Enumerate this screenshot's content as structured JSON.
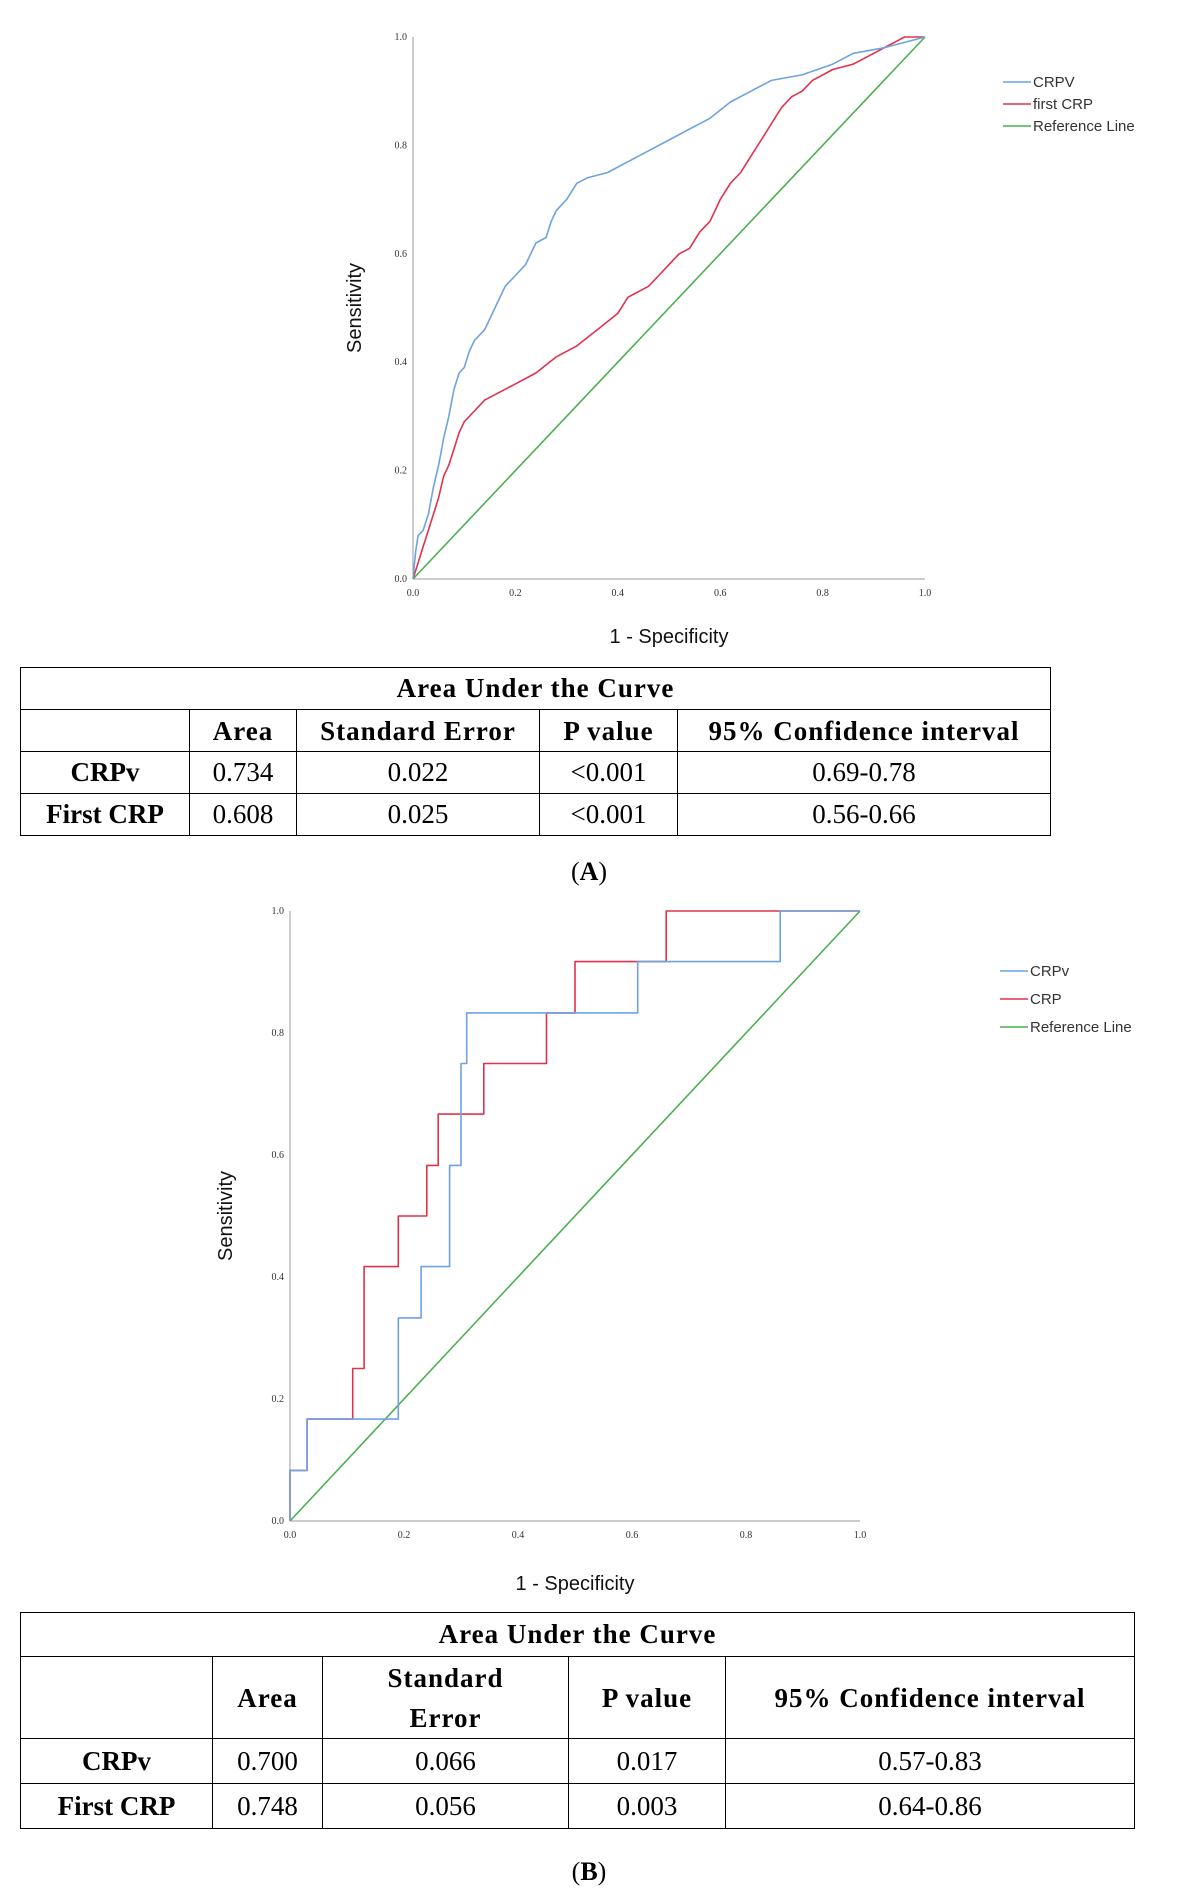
{
  "panels": [
    {
      "label_open": "(",
      "label_letter": "A",
      "label_close": ")",
      "legend": [
        {
          "name": "CRPV",
          "color": "#6ea3e0"
        },
        {
          "name": "first CRP",
          "color": "#e0324e"
        },
        {
          "name": "Reference Line",
          "color": "#4caf50"
        }
      ],
      "table": {
        "title": "Area Under the Curve",
        "headers": [
          "",
          "Area",
          "Standard Error",
          "P value",
          "95% Confidence interval"
        ],
        "rows": [
          [
            "CRPv",
            "0.734",
            "0.022",
            "<0.001",
            "0.69-0.78"
          ],
          [
            "First CRP",
            "0.608",
            "0.025",
            "<0.001",
            "0.56-0.66"
          ]
        ]
      }
    },
    {
      "label_open": "(",
      "label_letter": "B",
      "label_close": ")",
      "legend": [
        {
          "name": "CRPv",
          "color": "#6ea3e0"
        },
        {
          "name": "CRP",
          "color": "#e0324e"
        },
        {
          "name": "Reference Line",
          "color": "#4caf50"
        }
      ],
      "table": {
        "title": "Area Under the Curve",
        "headers": [
          "",
          "Area",
          "Standard Error",
          "P value",
          "95% Confidence interval"
        ],
        "rows": [
          [
            "CRPv",
            "0.700",
            "0.066",
            "0.017",
            "0.57-0.83"
          ],
          [
            "First CRP",
            "0.748",
            "0.056",
            "0.003",
            "0.64-0.86"
          ]
        ]
      }
    }
  ],
  "chart_data": [
    {
      "type": "line",
      "xlabel": "1 - Specificity",
      "ylabel": "Sensitivity",
      "xlim": [
        0,
        1
      ],
      "ylim": [
        0,
        1
      ],
      "x_ticks": [
        "0.0",
        "0.2",
        "0.4",
        "0.6",
        "0.8",
        "1.0"
      ],
      "y_ticks": [
        "0.0",
        "0.2",
        "0.4",
        "0.6",
        "0.8",
        "1.0"
      ],
      "grid": false,
      "legend_position": "right",
      "series": [
        {
          "name": "CRPV",
          "color": "#6ea3e0",
          "points": [
            [
              0,
              0
            ],
            [
              0.005,
              0.05
            ],
            [
              0.01,
              0.08
            ],
            [
              0.02,
              0.09
            ],
            [
              0.03,
              0.12
            ],
            [
              0.04,
              0.17
            ],
            [
              0.05,
              0.21
            ],
            [
              0.06,
              0.26
            ],
            [
              0.07,
              0.3
            ],
            [
              0.08,
              0.35
            ],
            [
              0.09,
              0.38
            ],
            [
              0.1,
              0.39
            ],
            [
              0.11,
              0.42
            ],
            [
              0.12,
              0.44
            ],
            [
              0.14,
              0.46
            ],
            [
              0.16,
              0.5
            ],
            [
              0.18,
              0.54
            ],
            [
              0.2,
              0.56
            ],
            [
              0.22,
              0.58
            ],
            [
              0.24,
              0.62
            ],
            [
              0.26,
              0.63
            ],
            [
              0.27,
              0.66
            ],
            [
              0.28,
              0.68
            ],
            [
              0.3,
              0.7
            ],
            [
              0.32,
              0.73
            ],
            [
              0.34,
              0.74
            ],
            [
              0.38,
              0.75
            ],
            [
              0.42,
              0.77
            ],
            [
              0.46,
              0.79
            ],
            [
              0.5,
              0.81
            ],
            [
              0.54,
              0.83
            ],
            [
              0.58,
              0.85
            ],
            [
              0.62,
              0.88
            ],
            [
              0.66,
              0.9
            ],
            [
              0.7,
              0.92
            ],
            [
              0.76,
              0.93
            ],
            [
              0.82,
              0.95
            ],
            [
              0.86,
              0.97
            ],
            [
              0.92,
              0.98
            ],
            [
              0.96,
              0.99
            ],
            [
              1,
              1
            ]
          ]
        },
        {
          "name": "first CRP",
          "color": "#e0324e",
          "points": [
            [
              0,
              0
            ],
            [
              0.01,
              0.03
            ],
            [
              0.02,
              0.06
            ],
            [
              0.03,
              0.09
            ],
            [
              0.04,
              0.12
            ],
            [
              0.05,
              0.15
            ],
            [
              0.06,
              0.19
            ],
            [
              0.07,
              0.21
            ],
            [
              0.08,
              0.24
            ],
            [
              0.09,
              0.27
            ],
            [
              0.1,
              0.29
            ],
            [
              0.12,
              0.31
            ],
            [
              0.14,
              0.33
            ],
            [
              0.16,
              0.34
            ],
            [
              0.2,
              0.36
            ],
            [
              0.24,
              0.38
            ],
            [
              0.28,
              0.41
            ],
            [
              0.32,
              0.43
            ],
            [
              0.36,
              0.46
            ],
            [
              0.4,
              0.49
            ],
            [
              0.42,
              0.52
            ],
            [
              0.46,
              0.54
            ],
            [
              0.48,
              0.56
            ],
            [
              0.5,
              0.58
            ],
            [
              0.52,
              0.6
            ],
            [
              0.54,
              0.61
            ],
            [
              0.56,
              0.64
            ],
            [
              0.58,
              0.66
            ],
            [
              0.6,
              0.7
            ],
            [
              0.62,
              0.73
            ],
            [
              0.64,
              0.75
            ],
            [
              0.66,
              0.78
            ],
            [
              0.68,
              0.81
            ],
            [
              0.7,
              0.84
            ],
            [
              0.72,
              0.87
            ],
            [
              0.74,
              0.89
            ],
            [
              0.76,
              0.9
            ],
            [
              0.78,
              0.92
            ],
            [
              0.82,
              0.94
            ],
            [
              0.86,
              0.95
            ],
            [
              0.9,
              0.97
            ],
            [
              0.94,
              0.99
            ],
            [
              0.96,
              1
            ],
            [
              1,
              1
            ]
          ]
        },
        {
          "name": "Reference Line",
          "color": "#4caf50",
          "points": [
            [
              0,
              0
            ],
            [
              1,
              1
            ]
          ]
        }
      ]
    },
    {
      "type": "line",
      "xlabel": "1 - Specificity",
      "ylabel": "Sensitivity",
      "xlim": [
        0,
        1
      ],
      "ylim": [
        0,
        1
      ],
      "x_ticks": [
        "0.0",
        "0.2",
        "0.4",
        "0.6",
        "0.8",
        "1.0"
      ],
      "y_ticks": [
        "0.0",
        "0.2",
        "0.4",
        "0.6",
        "0.8",
        "1.0"
      ],
      "grid": false,
      "legend_position": "right",
      "series": [
        {
          "name": "CRPv",
          "color": "#6ea3e0",
          "points": [
            [
              0,
              0
            ],
            [
              0,
              0.083
            ],
            [
              0.03,
              0.083
            ],
            [
              0.03,
              0.167
            ],
            [
              0.19,
              0.167
            ],
            [
              0.19,
              0.333
            ],
            [
              0.23,
              0.333
            ],
            [
              0.23,
              0.417
            ],
            [
              0.28,
              0.417
            ],
            [
              0.28,
              0.583
            ],
            [
              0.3,
              0.583
            ],
            [
              0.3,
              0.75
            ],
            [
              0.31,
              0.75
            ],
            [
              0.31,
              0.833
            ],
            [
              0.61,
              0.833
            ],
            [
              0.61,
              0.917
            ],
            [
              0.86,
              0.917
            ],
            [
              0.86,
              1
            ],
            [
              1,
              1
            ]
          ]
        },
        {
          "name": "CRP",
          "color": "#e0324e",
          "points": [
            [
              0,
              0
            ],
            [
              0,
              0.083
            ],
            [
              0.03,
              0.083
            ],
            [
              0.03,
              0.167
            ],
            [
              0.11,
              0.167
            ],
            [
              0.11,
              0.25
            ],
            [
              0.13,
              0.25
            ],
            [
              0.13,
              0.417
            ],
            [
              0.19,
              0.417
            ],
            [
              0.19,
              0.5
            ],
            [
              0.24,
              0.5
            ],
            [
              0.24,
              0.583
            ],
            [
              0.26,
              0.583
            ],
            [
              0.26,
              0.667
            ],
            [
              0.34,
              0.667
            ],
            [
              0.34,
              0.75
            ],
            [
              0.45,
              0.75
            ],
            [
              0.45,
              0.833
            ],
            [
              0.5,
              0.833
            ],
            [
              0.5,
              0.917
            ],
            [
              0.66,
              0.917
            ],
            [
              0.66,
              1
            ],
            [
              1,
              1
            ]
          ]
        },
        {
          "name": "Reference Line",
          "color": "#4caf50",
          "points": [
            [
              0,
              0
            ],
            [
              1,
              1
            ]
          ]
        }
      ]
    }
  ]
}
